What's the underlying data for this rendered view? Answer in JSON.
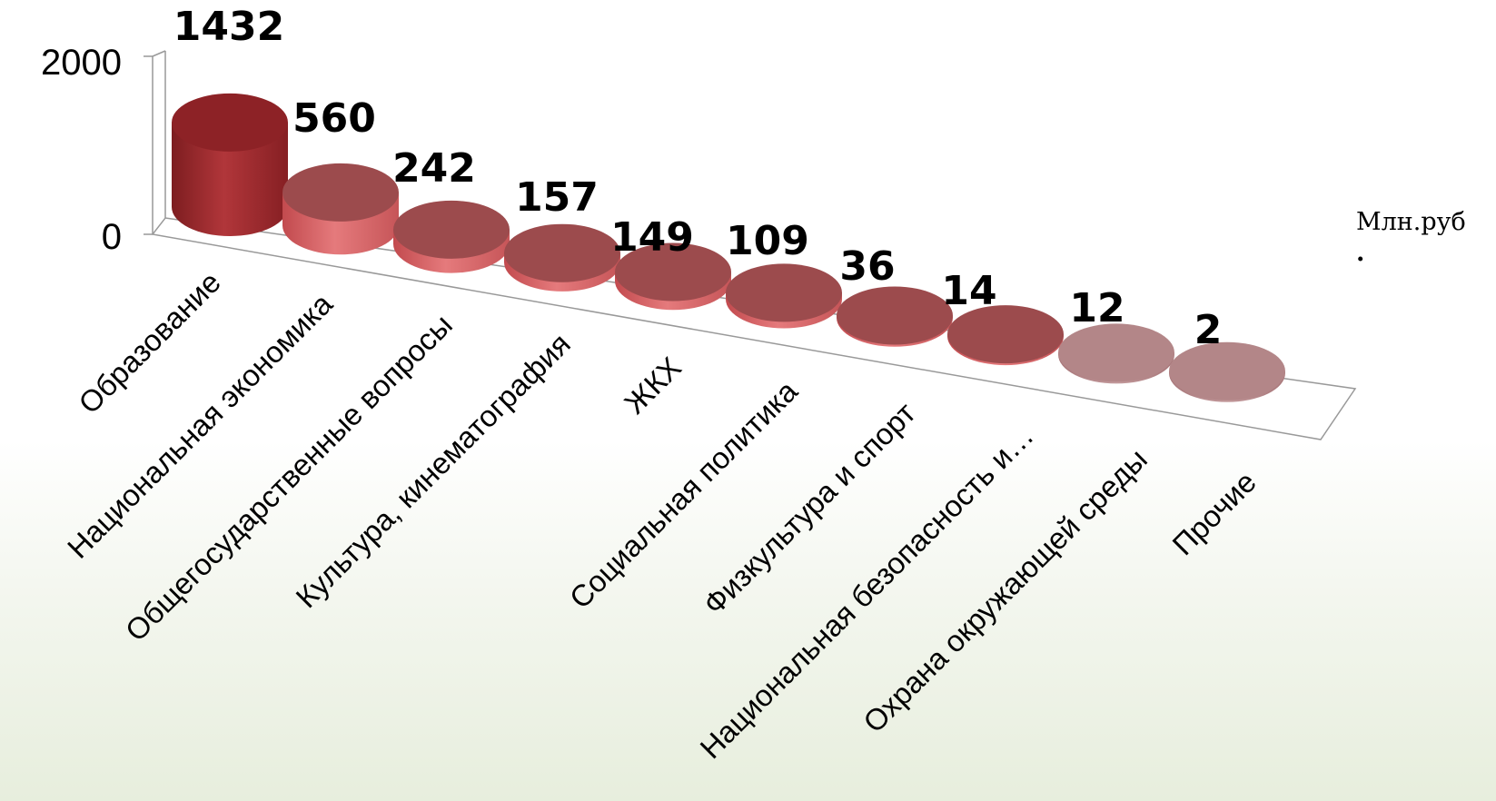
{
  "chart_data": {
    "type": "bar",
    "style": "3d-cylinder",
    "categories": [
      "Образование",
      "Национальная экономика",
      "Общегосударственные вопросы",
      "Культура, кинематография",
      "ЖКХ",
      "Социальная политика",
      "Физкультура и спорт",
      "Национальная безопасность и…",
      "Охрана окружающей среды",
      "Прочие"
    ],
    "values": [
      1432,
      560,
      242,
      157,
      149,
      109,
      36,
      14,
      12,
      2
    ],
    "value_labels": [
      "1432",
      "560",
      "242",
      "157",
      "149",
      "109",
      "36",
      "14",
      "12",
      "2"
    ],
    "ylim": [
      0,
      2000
    ],
    "yticks": [
      "0",
      "2000"
    ],
    "grid": false,
    "legend": "none",
    "colors": {
      "bar_main": "#a32a2e",
      "bar_light": "#d96568",
      "bar_top": "#9c4b4d",
      "bar_faded": "#b38688",
      "axis": "#999999"
    }
  },
  "unit_label": {
    "line1": "Млн.руб",
    "line2": "."
  }
}
